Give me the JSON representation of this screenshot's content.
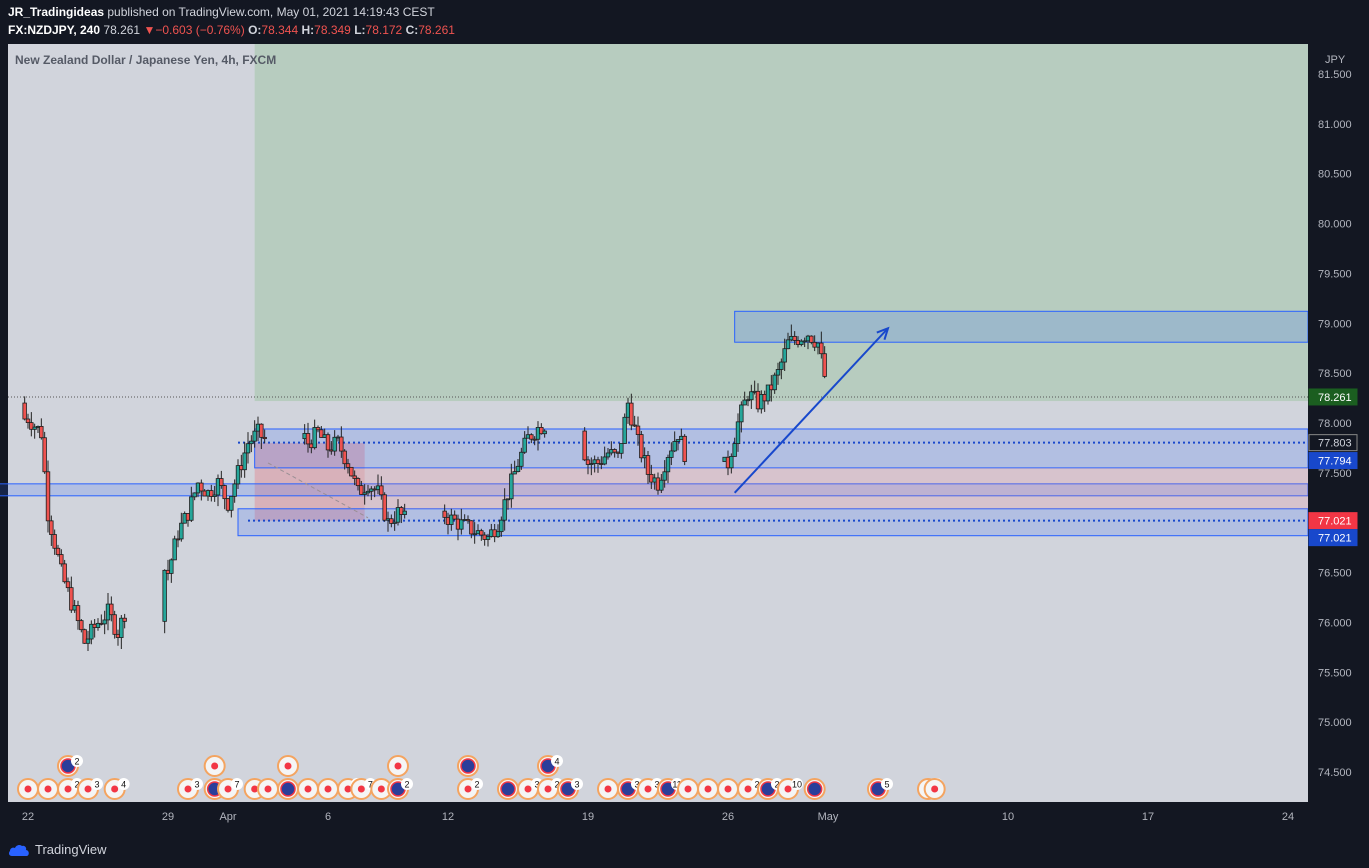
{
  "header": {
    "author": "JR_Tradingideas",
    "published_text": " published on TradingView.com, May 01, 2021 14:19:43 CEST",
    "symbol": "FX:NZDJPY, 240",
    "last": "78.261",
    "change": "−0.603 (−0.76%)",
    "o_label": "O:",
    "o_value": "78.344",
    "h_label": "H:",
    "h_value": "78.349",
    "l_label": "L:",
    "l_value": "78.172",
    "c_label": "C:",
    "c_value": "78.261"
  },
  "footer": {
    "brand": "TradingView"
  },
  "colors": {
    "up": "#26a69a",
    "down": "#ef5350",
    "candle_body": "#1e1e1e",
    "green_zone": "#b7ccbf",
    "plot_bg": "#d1d4dc",
    "blue_zone": "#2962ff",
    "badge_dark_green": "#1b5e20",
    "badge_red": "#f23645",
    "badge_blue": "#1848cc",
    "arrow": "#1848cc"
  },
  "chart_data": {
    "type": "candlestick",
    "title": "New Zealand Dollar / Japanese Yen, 4h, FXCM",
    "currency": "JPY",
    "ylim": [
      74.2,
      81.8
    ],
    "y_ticks": [
      74.5,
      75.0,
      75.5,
      76.0,
      76.5,
      77.0,
      77.5,
      78.0,
      78.5,
      79.0,
      79.5,
      80.0,
      80.5,
      81.0,
      81.5
    ],
    "y_tick_labels": [
      "74.500",
      "75.000",
      "75.500",
      "76.000",
      "76.500",
      "77.000",
      "77.500",
      "78.000",
      "78.500",
      "79.000",
      "79.500",
      "80.000",
      "80.500",
      "81.000",
      "81.500"
    ],
    "x_ticks": [
      "22",
      "29",
      "Apr",
      "6",
      "12",
      "19",
      "26",
      "May",
      "10",
      "17",
      "24"
    ],
    "x_tick_dates": [
      "2021-03-22",
      "2021-03-29",
      "2021-04-01",
      "2021-04-06",
      "2021-04-12",
      "2021-04-19",
      "2021-04-26",
      "2021-05-01",
      "2021-05-10",
      "2021-05-17",
      "2021-05-24"
    ],
    "x_range_dates": [
      "2021-03-21",
      "2021-05-25"
    ],
    "price_labels": [
      {
        "value": 78.261,
        "text": "78.261",
        "style": "last"
      },
      {
        "value": 77.803,
        "text": "77.803",
        "style": "plain"
      },
      {
        "value": 77.794,
        "text": "77.794",
        "style": "blue"
      },
      {
        "value": 77.021,
        "text": "77.021",
        "style": "red"
      },
      {
        "value": 77.021,
        "text": "77.021",
        "style": "blue"
      }
    ],
    "path": [
      [
        "2021-03-20T12:00",
        78.2
      ],
      [
        "2021-03-21",
        78.0
      ],
      [
        "2021-03-22",
        78.05
      ],
      [
        "2021-03-22T16:00",
        77.9
      ],
      [
        "2021-03-23",
        77.1
      ],
      [
        "2021-03-23T16:00",
        76.5
      ],
      [
        "2021-03-24T08:00",
        76.1
      ],
      [
        "2021-03-24T20:00",
        75.8
      ],
      [
        "2021-03-25T12:00",
        76.0
      ],
      [
        "2021-03-26",
        76.1
      ],
      [
        "2021-03-26T12:00",
        75.9
      ],
      [
        "2021-03-27",
        76.2
      ],
      [
        "2021-03-27T12:00",
        76.5
      ],
      [
        "2021-03-28",
        76.7
      ],
      [
        "2021-03-28T12:00",
        76.6
      ],
      [
        "2021-03-29",
        76.5
      ],
      [
        "2021-03-29T12:00",
        76.9
      ],
      [
        "2021-03-30",
        77.1
      ],
      [
        "2021-03-30T12:00",
        77.4
      ],
      [
        "2021-03-31",
        77.3
      ],
      [
        "2021-03-31T12:00",
        77.4
      ],
      [
        "2021-04-01",
        77.2
      ],
      [
        "2021-04-01T12:00",
        77.5
      ],
      [
        "2021-04-02",
        77.8
      ],
      [
        "2021-04-02T12:00",
        77.9
      ],
      [
        "2021-04-03",
        77.8
      ],
      [
        "2021-04-03T12:00",
        77.7
      ],
      [
        "2021-04-04",
        77.9
      ],
      [
        "2021-04-04T12:00",
        77.95
      ],
      [
        "2021-04-05",
        77.8
      ],
      [
        "2021-04-05T12:00",
        77.9
      ],
      [
        "2021-04-06",
        77.75
      ],
      [
        "2021-04-06T12:00",
        77.8
      ],
      [
        "2021-04-07",
        77.6
      ],
      [
        "2021-04-07T12:00",
        77.3
      ],
      [
        "2021-04-08",
        77.4
      ],
      [
        "2021-04-08T12:00",
        77.3
      ],
      [
        "2021-04-09",
        77.0
      ],
      [
        "2021-04-09T12:00",
        77.1
      ],
      [
        "2021-04-10",
        77.0
      ],
      [
        "2021-04-10T12:00",
        77.1
      ],
      [
        "2021-04-11",
        77.2
      ],
      [
        "2021-04-11T12:00",
        77.15
      ],
      [
        "2021-04-12",
        77.05
      ],
      [
        "2021-04-12T12:00",
        77.0
      ],
      [
        "2021-04-13",
        76.95
      ],
      [
        "2021-04-13T12:00",
        76.9
      ],
      [
        "2021-04-14",
        76.85
      ],
      [
        "2021-04-14T12:00",
        77.0
      ],
      [
        "2021-04-15",
        77.3
      ],
      [
        "2021-04-15T12:00",
        77.6
      ],
      [
        "2021-04-16",
        77.85
      ],
      [
        "2021-04-16T12:00",
        77.95
      ],
      [
        "2021-04-17",
        78.0
      ],
      [
        "2021-04-17T12:00",
        77.95
      ],
      [
        "2021-04-18",
        78.0
      ],
      [
        "2021-04-18T12:00",
        77.9
      ],
      [
        "2021-04-19",
        77.6
      ],
      [
        "2021-04-19T12:00",
        77.6
      ],
      [
        "2021-04-20",
        77.7
      ],
      [
        "2021-04-20T12:00",
        77.65
      ],
      [
        "2021-04-21",
        78.2
      ],
      [
        "2021-04-21T12:00",
        77.8
      ],
      [
        "2021-04-22",
        77.5
      ],
      [
        "2021-04-22T12:00",
        77.4
      ],
      [
        "2021-04-23",
        77.7
      ],
      [
        "2021-04-23T12:00",
        77.9
      ],
      [
        "2021-04-24",
        77.6
      ],
      [
        "2021-04-24T12:00",
        77.3
      ],
      [
        "2021-04-25",
        77.35
      ],
      [
        "2021-04-25T12:00",
        77.5
      ],
      [
        "2021-04-26",
        77.6
      ],
      [
        "2021-04-26T12:00",
        78.0
      ],
      [
        "2021-04-27",
        78.3
      ],
      [
        "2021-04-27T12:00",
        78.2
      ],
      [
        "2021-04-28",
        78.3
      ],
      [
        "2021-04-28T12:00",
        78.5
      ],
      [
        "2021-04-29",
        78.8
      ],
      [
        "2021-04-29T12:00",
        78.85
      ],
      [
        "2021-04-30",
        78.9
      ],
      [
        "2021-04-30T12:00",
        78.8
      ],
      [
        "2021-05-01",
        78.3
      ]
    ],
    "annotations": {
      "green_zone": {
        "x_start": "2021-04-02T08:00",
        "y_bottom": 78.22
      },
      "red_box": {
        "x_start": "2021-04-02T08:00",
        "x_end": "2021-04-07T20:00",
        "y_bottom": 77.02,
        "y_top": 77.8
      },
      "red_box_diagonal": {
        "from": [
          "2021-04-03",
          77.6
        ],
        "to": [
          "2021-04-08",
          77.05
        ]
      },
      "blue_zone_low": {
        "x_start": "2021-04-02T08:00",
        "y_bottom": 77.55,
        "y_top": 77.94
      },
      "blue_zone_mid": {
        "x_start": "2021-03-20T12:00",
        "y_bottom": 77.27,
        "y_top": 77.39
      },
      "blue_zone_base": {
        "x_start": "2021-04-01T12:00",
        "y_bottom": 76.87,
        "y_top": 77.14
      },
      "blue_zone_top": {
        "x_start": "2021-04-26T08:00",
        "y_bottom": 78.81,
        "y_top": 79.12
      },
      "arrow": {
        "from": [
          "2021-04-26T08:00",
          77.3
        ],
        "to": [
          "2021-05-04",
          78.95
        ]
      },
      "dotted_line_1": {
        "x_start": "2021-04-01T12:00",
        "value": 77.803
      },
      "dotted_line_2": {
        "x_start": "2021-04-02",
        "value": 77.021
      },
      "last_price_line": 78.261
    },
    "event_badges": [
      {
        "date": "2021-03-22",
        "kind": "red",
        "count": "",
        "row": 1
      },
      {
        "date": "2021-03-23",
        "kind": "red",
        "count": "",
        "row": 1
      },
      {
        "date": "2021-03-24",
        "kind": "red",
        "count": "2",
        "row": 1
      },
      {
        "date": "2021-03-25",
        "kind": "red",
        "count": "3",
        "row": 1
      },
      {
        "date": "2021-03-26T08:00",
        "kind": "red",
        "count": "4",
        "row": 1
      },
      {
        "date": "2021-03-24",
        "kind": "flag",
        "count": "2",
        "row": 2
      },
      {
        "date": "2021-03-30",
        "kind": "red",
        "count": "3",
        "row": 1
      },
      {
        "date": "2021-03-31T08:00",
        "kind": "flag",
        "count": "",
        "row": 1
      },
      {
        "date": "2021-03-31T08:00",
        "kind": "red",
        "count": "",
        "row": 2
      },
      {
        "date": "2021-04-01",
        "kind": "red",
        "count": "7",
        "row": 1
      },
      {
        "date": "2021-04-02T08:00",
        "kind": "red",
        "count": "",
        "row": 1
      },
      {
        "date": "2021-04-03",
        "kind": "red",
        "count": "",
        "row": 1
      },
      {
        "date": "2021-04-04",
        "kind": "flag",
        "count": "",
        "row": 1
      },
      {
        "date": "2021-04-04",
        "kind": "red",
        "count": "",
        "row": 2
      },
      {
        "date": "2021-04-05",
        "kind": "red",
        "count": "",
        "row": 1
      },
      {
        "date": "2021-04-06",
        "kind": "red",
        "count": "",
        "row": 1
      },
      {
        "date": "2021-04-07",
        "kind": "red",
        "count": "2",
        "row": 1
      },
      {
        "date": "2021-04-07T16:00",
        "kind": "red",
        "count": "7",
        "row": 1
      },
      {
        "date": "2021-04-08T16:00",
        "kind": "red",
        "count": "",
        "row": 1
      },
      {
        "date": "2021-04-09T12:00",
        "kind": "flag",
        "count": "2",
        "row": 1
      },
      {
        "date": "2021-04-09T12:00",
        "kind": "red",
        "count": "",
        "row": 2
      },
      {
        "date": "2021-04-13",
        "kind": "red",
        "count": "2",
        "row": 1
      },
      {
        "date": "2021-04-13",
        "kind": "flag",
        "count": "",
        "row": 2
      },
      {
        "date": "2021-04-15",
        "kind": "flag",
        "count": "",
        "row": 1
      },
      {
        "date": "2021-04-16",
        "kind": "red",
        "count": "3",
        "row": 1
      },
      {
        "date": "2021-04-17",
        "kind": "red",
        "count": "2",
        "row": 1
      },
      {
        "date": "2021-04-17",
        "kind": "flag",
        "count": "4",
        "row": 2
      },
      {
        "date": "2021-04-18",
        "kind": "flag",
        "count": "3",
        "row": 1
      },
      {
        "date": "2021-04-20",
        "kind": "red",
        "count": "",
        "row": 1
      },
      {
        "date": "2021-04-21",
        "kind": "flag",
        "count": "3",
        "row": 1
      },
      {
        "date": "2021-04-22",
        "kind": "red",
        "count": "3",
        "row": 1
      },
      {
        "date": "2021-04-23",
        "kind": "flag",
        "count": "11",
        "row": 1
      },
      {
        "date": "2021-04-24",
        "kind": "red",
        "count": "",
        "row": 1
      },
      {
        "date": "2021-04-25",
        "kind": "red",
        "count": "",
        "row": 1
      },
      {
        "date": "2021-04-26",
        "kind": "red",
        "count": "",
        "row": 1
      },
      {
        "date": "2021-04-27",
        "kind": "red",
        "count": "2",
        "row": 1
      },
      {
        "date": "2021-04-28",
        "kind": "flag",
        "count": "2",
        "row": 1
      },
      {
        "date": "2021-04-29",
        "kind": "red",
        "count": "10",
        "row": 1
      },
      {
        "date": "2021-04-30T08:00",
        "kind": "flag",
        "count": "",
        "row": 1
      },
      {
        "date": "2021-05-03T12:00",
        "kind": "flag",
        "count": "5",
        "row": 1
      },
      {
        "date": "2021-05-06",
        "kind": "red",
        "count": "4",
        "row": 1
      },
      {
        "date": "2021-05-06T08:00",
        "kind": "red",
        "count": "",
        "row": 1
      }
    ]
  }
}
